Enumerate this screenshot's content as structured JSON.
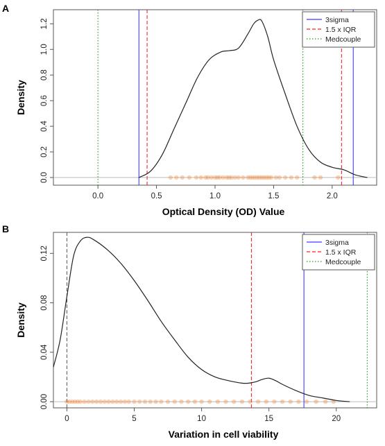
{
  "chart_data": [
    {
      "panel": "A",
      "type": "line",
      "xlabel": "Optical Density (OD) Value",
      "ylabel": "Density",
      "xlim": [
        -0.38,
        2.38
      ],
      "ylim": [
        -0.06,
        1.31
      ],
      "xticks": [
        0.0,
        0.5,
        1.0,
        1.5,
        2.0
      ],
      "xtick_labels": [
        "0.0",
        "0.5",
        "1.0",
        "1.5",
        "2.0"
      ],
      "yticks": [
        0.0,
        0.2,
        0.4,
        0.6,
        0.8,
        1.0,
        1.2
      ],
      "ytick_labels": [
        "0.0",
        "0.2",
        "0.4",
        "0.6",
        "0.8",
        "1.0",
        "1.2"
      ],
      "grid": false,
      "legend_position": "top-right",
      "legend": [
        {
          "label": "3sigma",
          "color": "#3c3cff",
          "style": "solid"
        },
        {
          "label": "1.5 x IQR",
          "color": "#ff2020",
          "style": "dashed"
        },
        {
          "label": "Medcouple",
          "color": "#1a9a1a",
          "style": "dotted"
        }
      ],
      "series": [
        {
          "name": "density",
          "x": [
            0.35,
            0.45,
            0.55,
            0.65,
            0.75,
            0.85,
            0.95,
            1.05,
            1.12,
            1.2,
            1.28,
            1.33,
            1.37,
            1.4,
            1.45,
            1.5,
            1.6,
            1.7,
            1.8,
            1.9,
            2.0,
            2.1,
            2.2,
            2.3
          ],
          "y": [
            0.0,
            0.05,
            0.18,
            0.38,
            0.58,
            0.78,
            0.92,
            0.98,
            0.99,
            1.01,
            1.12,
            1.2,
            1.23,
            1.22,
            1.1,
            0.92,
            0.65,
            0.4,
            0.22,
            0.12,
            0.08,
            0.06,
            0.02,
            0.0
          ]
        }
      ],
      "vlines": [
        {
          "method": "3sigma",
          "x": 0.35
        },
        {
          "method": "3sigma",
          "x": 2.18
        },
        {
          "method": "1.5 x IQR",
          "x": 0.42
        },
        {
          "method": "1.5 x IQR",
          "x": 2.08
        },
        {
          "method": "Medcouple",
          "x": 0.0
        },
        {
          "method": "Medcouple",
          "x": 1.75
        }
      ],
      "rug": [
        0.62,
        0.67,
        0.72,
        0.78,
        0.84,
        0.88,
        0.92,
        0.94,
        0.97,
        1.0,
        1.02,
        1.04,
        1.07,
        1.1,
        1.12,
        1.14,
        1.17,
        1.2,
        1.24,
        1.28,
        1.3,
        1.32,
        1.34,
        1.36,
        1.38,
        1.4,
        1.42,
        1.44,
        1.46,
        1.48,
        1.52,
        1.55,
        1.6,
        1.65,
        1.7,
        1.85,
        1.9,
        2.05
      ],
      "rug_color": "#f08030"
    },
    {
      "panel": "B",
      "type": "line",
      "xlabel": "Variation in cell viability",
      "ylabel": "Density",
      "xlim": [
        -1,
        23
      ],
      "ylim": [
        -0.005,
        0.137
      ],
      "xticks": [
        0,
        5,
        10,
        15,
        20
      ],
      "xtick_labels": [
        "0",
        "5",
        "10",
        "15",
        "20"
      ],
      "yticks": [
        0.0,
        0.04,
        0.08,
        0.12
      ],
      "ytick_labels": [
        "0.00",
        "0.04",
        "0.08",
        "0.12"
      ],
      "grid": false,
      "legend_position": "top-right",
      "legend": [
        {
          "label": "3sigma",
          "color": "#3c3cff",
          "style": "solid"
        },
        {
          "label": "1.5 x IQR",
          "color": "#ff2020",
          "style": "dashed"
        },
        {
          "label": "Medcouple",
          "color": "#1a9a1a",
          "style": "dotted"
        }
      ],
      "series": [
        {
          "name": "density",
          "x": [
            -1,
            -0.5,
            0,
            0.5,
            1,
            1.5,
            2,
            3,
            4,
            5,
            6,
            7,
            8,
            9,
            10,
            11,
            12,
            13,
            13.5,
            14,
            14.5,
            15,
            15.5,
            16,
            17,
            18,
            19,
            20,
            21
          ],
          "y": [
            0.028,
            0.05,
            0.085,
            0.118,
            0.13,
            0.133,
            0.131,
            0.123,
            0.112,
            0.098,
            0.082,
            0.065,
            0.05,
            0.036,
            0.026,
            0.02,
            0.017,
            0.015,
            0.015,
            0.016,
            0.018,
            0.019,
            0.017,
            0.014,
            0.009,
            0.005,
            0.003,
            0.001,
            0.0
          ]
        }
      ],
      "vlines": [
        {
          "method": "3sigma",
          "x": 17.6
        },
        {
          "method": "1.5 x IQR",
          "x": 13.7
        },
        {
          "method": "Medcouple",
          "x": 22.3
        }
      ],
      "zero_vline": {
        "x": 0,
        "color": "#555555",
        "style": "dashed"
      },
      "rug": [
        0.0,
        0.2,
        0.4,
        0.6,
        0.8,
        1.0,
        1.3,
        1.6,
        1.9,
        2.2,
        2.5,
        2.8,
        3.1,
        3.4,
        3.7,
        4.0,
        4.3,
        4.6,
        5.0,
        5.4,
        5.8,
        6.2,
        6.6,
        7.0,
        7.5,
        8.0,
        8.5,
        9.0,
        9.5,
        10.0,
        10.6,
        11.2,
        11.8,
        12.4,
        13.0,
        13.6,
        14.2,
        14.8,
        15.4,
        16.0,
        16.6,
        17.2,
        17.8,
        18.5,
        19.2,
        19.8
      ],
      "rug_color": "#f08030"
    }
  ]
}
